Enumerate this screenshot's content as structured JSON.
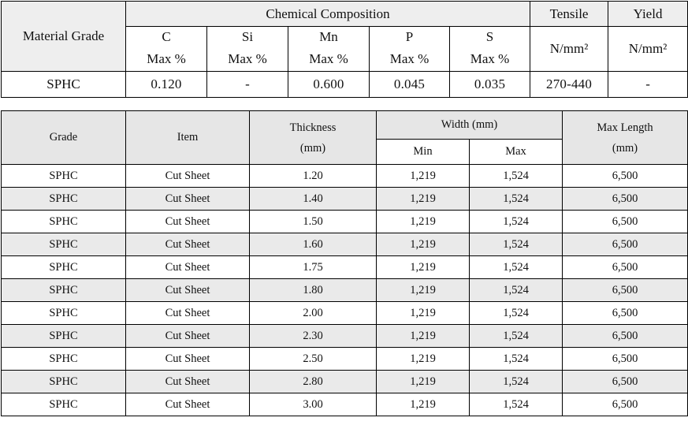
{
  "chemical_table": {
    "material_grade_header": "Material Grade",
    "chemical_composition_header": "Chemical Composition",
    "tensile_header": "Tensile",
    "yield_header": "Yield",
    "elements": [
      {
        "symbol": "C",
        "unit": "Max %"
      },
      {
        "symbol": "Si",
        "unit": "Max %"
      },
      {
        "symbol": "Mn",
        "unit": "Max %"
      },
      {
        "symbol": "P",
        "unit": "Max %"
      },
      {
        "symbol": "S",
        "unit": "Max %"
      }
    ],
    "tensile_unit": "N/mm²",
    "yield_unit": "N/mm²",
    "row": {
      "grade": "SPHC",
      "c": "0.120",
      "si": "-",
      "mn": "0.600",
      "p": "0.045",
      "s": "0.035",
      "tensile": "270-440",
      "yield": "-"
    }
  },
  "dimension_table": {
    "headers": {
      "grade": "Grade",
      "item": "Item",
      "thickness": "Thickness",
      "thickness_unit": "(mm)",
      "width": "Width (mm)",
      "width_min": "Min",
      "width_max": "Max",
      "max_length": "Max Length",
      "max_length_unit": "(mm)"
    },
    "rows": [
      {
        "grade": "SPHC",
        "item": "Cut Sheet",
        "thickness": "1.20",
        "min": "1,219",
        "max": "1,524",
        "length": "6,500"
      },
      {
        "grade": "SPHC",
        "item": "Cut Sheet",
        "thickness": "1.40",
        "min": "1,219",
        "max": "1,524",
        "length": "6,500"
      },
      {
        "grade": "SPHC",
        "item": "Cut Sheet",
        "thickness": "1.50",
        "min": "1,219",
        "max": "1,524",
        "length": "6,500"
      },
      {
        "grade": "SPHC",
        "item": "Cut Sheet",
        "thickness": "1.60",
        "min": "1,219",
        "max": "1,524",
        "length": "6,500"
      },
      {
        "grade": "SPHC",
        "item": "Cut Sheet",
        "thickness": "1.75",
        "min": "1,219",
        "max": "1,524",
        "length": "6,500"
      },
      {
        "grade": "SPHC",
        "item": "Cut Sheet",
        "thickness": "1.80",
        "min": "1,219",
        "max": "1,524",
        "length": "6,500"
      },
      {
        "grade": "SPHC",
        "item": "Cut Sheet",
        "thickness": "2.00",
        "min": "1,219",
        "max": "1,524",
        "length": "6,500"
      },
      {
        "grade": "SPHC",
        "item": "Cut Sheet",
        "thickness": "2.30",
        "min": "1,219",
        "max": "1,524",
        "length": "6,500"
      },
      {
        "grade": "SPHC",
        "item": "Cut Sheet",
        "thickness": "2.50",
        "min": "1,219",
        "max": "1,524",
        "length": "6,500"
      },
      {
        "grade": "SPHC",
        "item": "Cut Sheet",
        "thickness": "2.80",
        "min": "1,219",
        "max": "1,524",
        "length": "6,500"
      },
      {
        "grade": "SPHC",
        "item": "Cut Sheet",
        "thickness": "3.00",
        "min": "1,219",
        "max": "1,524",
        "length": "6,500"
      }
    ]
  },
  "colors": {
    "header_fill": "#eeeeee",
    "alt_row_fill": "#eaeaea",
    "border": "#000000"
  }
}
